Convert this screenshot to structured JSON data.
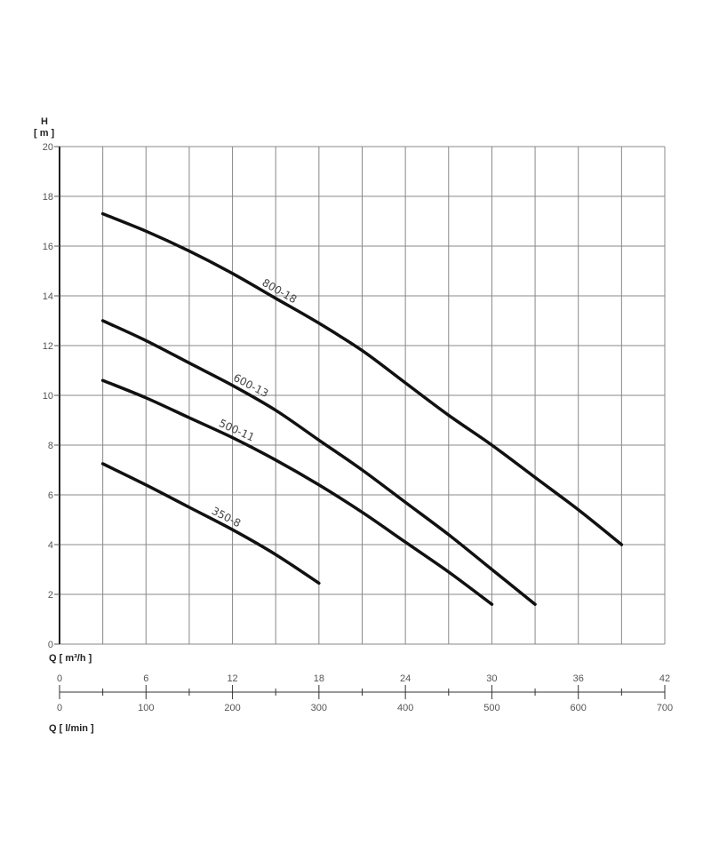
{
  "chart_data": {
    "type": "line",
    "ylabel_top": "H",
    "ylabel_unit": "[ m ]",
    "xlabel": "Q [ m³/h ]",
    "xlabel_secondary": "Q [ l/min ]",
    "xlim": [
      0,
      42
    ],
    "ylim": [
      0,
      20
    ],
    "x_ticks": [
      0,
      6,
      12,
      18,
      24,
      30,
      36,
      42
    ],
    "x_ticks_secondary": [
      0,
      100,
      200,
      300,
      400,
      500,
      600,
      700
    ],
    "y_ticks": [
      0,
      2,
      4,
      6,
      8,
      10,
      12,
      14,
      16,
      18,
      20
    ],
    "grid": true,
    "line_color": "#111111",
    "series": [
      {
        "name": "800-18",
        "x": [
          3,
          6,
          9,
          12,
          15,
          18,
          21,
          24,
          27,
          30,
          33,
          36,
          39
        ],
        "y": [
          17.3,
          16.6,
          15.8,
          14.9,
          13.9,
          12.9,
          11.8,
          10.5,
          9.2,
          8.0,
          6.7,
          5.4,
          4.0
        ]
      },
      {
        "name": "600-13",
        "x": [
          3,
          6,
          9,
          12,
          15,
          18,
          21,
          24,
          27,
          30,
          33
        ],
        "y": [
          13.0,
          12.2,
          11.3,
          10.4,
          9.4,
          8.2,
          7.0,
          5.7,
          4.4,
          3.0,
          1.6
        ]
      },
      {
        "name": "500-11",
        "x": [
          3,
          6,
          9,
          12,
          15,
          18,
          21,
          24,
          27,
          30
        ],
        "y": [
          10.6,
          9.9,
          9.1,
          8.3,
          7.4,
          6.4,
          5.3,
          4.1,
          2.9,
          1.6
        ]
      },
      {
        "name": "350-8",
        "x": [
          3,
          6,
          9,
          12,
          15,
          18
        ],
        "y": [
          7.25,
          6.4,
          5.5,
          4.6,
          3.6,
          2.45
        ]
      }
    ]
  }
}
